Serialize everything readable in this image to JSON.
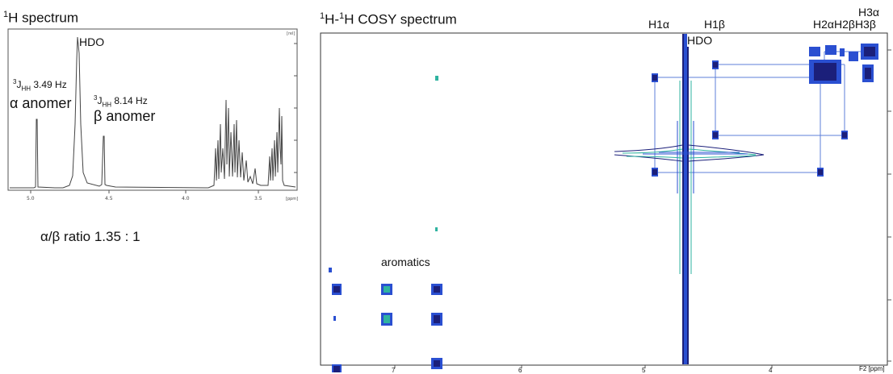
{
  "h1_panel": {
    "title_prefix": "1",
    "title_rest": "H spectrum",
    "hdo_label": "HDO",
    "alpha_coupling_sup": "3",
    "alpha_coupling_sub": "HH",
    "alpha_coupling_value": " 3.49 Hz",
    "alpha_label": "α anomer",
    "beta_coupling_sup": "3",
    "beta_coupling_sub": "HH",
    "beta_coupling_value": " 8.14 Hz",
    "beta_label": "β anomer",
    "x_ticks": [
      "5.0",
      "4.5",
      "4.0",
      "3.5"
    ],
    "x_unit": "[ppm]",
    "y_unit": "[rel]",
    "ratio_text": "α/β ratio 1.35 : 1"
  },
  "cosy_panel": {
    "title_sup1": "1",
    "title_mid": "H-",
    "title_sup2": "1",
    "title_rest": "H COSY spectrum",
    "top_labels": {
      "h1a": "H1α",
      "h1b": "H1β",
      "h2a_h2b_h3b": "H2αH2βH3β",
      "h3a": "H3α"
    },
    "hdo_label": "HDO",
    "aromatics_label": "aromatics",
    "x_ticks": [
      "7",
      "6",
      "5",
      "4"
    ],
    "x_unit": "F2 [ppm]"
  },
  "colors": {
    "cosy_blue": "#2a4fd1",
    "cosy_teal": "#2fb3a0",
    "cosy_navy": "#1b1f7a",
    "connector_line": "#5e7fd8",
    "spectrum_line": "#444444"
  }
}
